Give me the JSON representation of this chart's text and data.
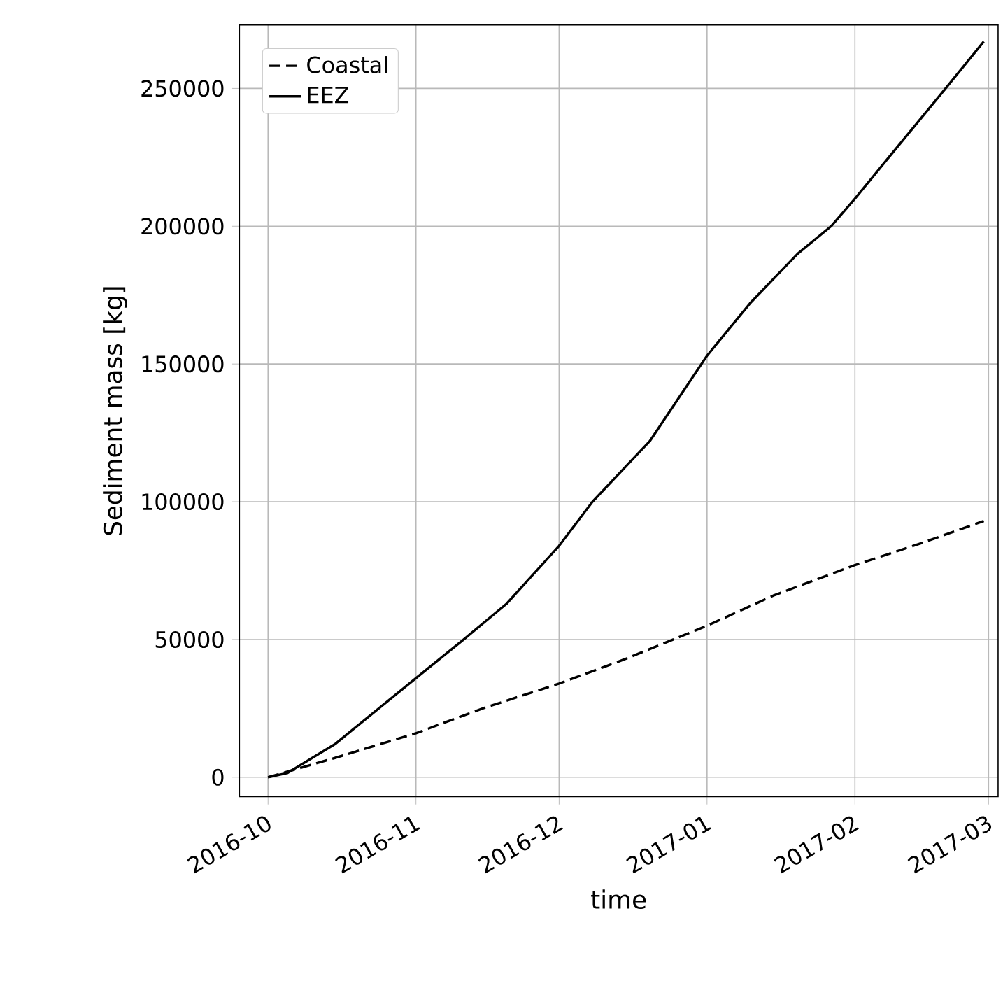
{
  "chart_data": {
    "type": "line",
    "xlabel": "time",
    "ylabel": "Sediment mass [kg]",
    "x": [
      "2016-10-01",
      "2016-10-05",
      "2016-10-15",
      "2016-11-01",
      "2016-11-11",
      "2016-11-20",
      "2016-12-01",
      "2016-12-08",
      "2016-12-20",
      "2017-01-01",
      "2017-01-10",
      "2017-01-20",
      "2017-01-27",
      "2017-02-01",
      "2017-02-10",
      "2017-02-20",
      "2017-02-28"
    ],
    "series": [
      {
        "name": "Coastal",
        "color": "#000000",
        "line_style": "dashed",
        "x": [
          "2016-10-01",
          "2016-10-15",
          "2016-11-01",
          "2016-11-15",
          "2016-12-01",
          "2016-12-15",
          "2017-01-01",
          "2017-01-15",
          "2017-02-01",
          "2017-02-15",
          "2017-02-28"
        ],
        "values": [
          0,
          7000,
          16000,
          25000,
          34000,
          43000,
          55000,
          66000,
          77000,
          85000,
          93000
        ]
      },
      {
        "name": "EEZ",
        "color": "#000000",
        "line_style": "solid",
        "values": [
          0,
          1500,
          12000,
          36000,
          50000,
          63000,
          84000,
          100000,
          122000,
          153000,
          172000,
          190000,
          200000,
          210000,
          229000,
          250000,
          267000
        ]
      }
    ],
    "xlim": [
      "2016-09-25",
      "2017-03-03"
    ],
    "xticks": [
      {
        "value": "2016-10",
        "label": "2016-10"
      },
      {
        "value": "2016-11",
        "label": "2016-11"
      },
      {
        "value": "2016-12",
        "label": "2016-12"
      },
      {
        "value": "2017-01",
        "label": "2017-01"
      },
      {
        "value": "2017-02",
        "label": "2017-02"
      },
      {
        "value": "2017-03",
        "label": "2017-03"
      }
    ],
    "ylim": [
      -7000,
      273000
    ],
    "yticks": [
      0,
      50000,
      100000,
      150000,
      200000,
      250000
    ],
    "grid": true,
    "legend": "top left",
    "marker": "none"
  }
}
